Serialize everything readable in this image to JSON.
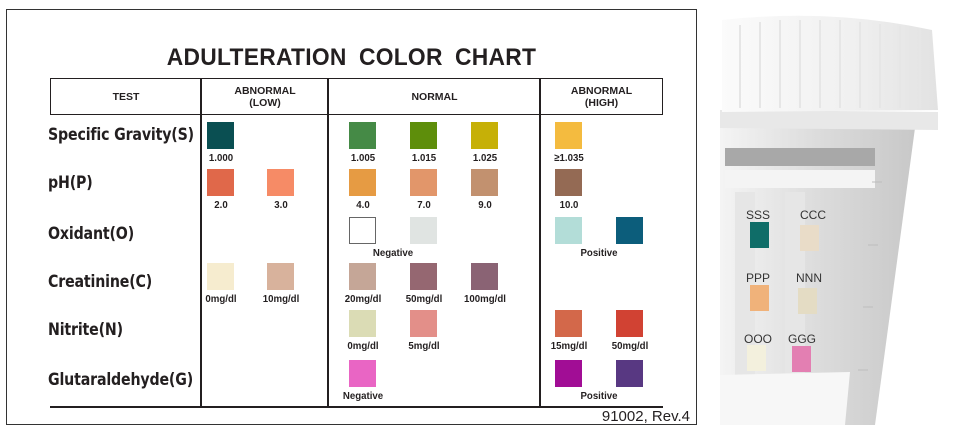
{
  "chart": {
    "title": "ADULTERATION  COLOR  CHART",
    "headers": {
      "test": "TEST",
      "low": "ABNORMAL\n(LOW)",
      "normal": "NORMAL",
      "high": "ABNORMAL\n(HIGH)"
    },
    "tests": [
      {
        "name": "Specific Gravity(S)",
        "low": {
          "swatches": [
            {
              "color": "#0a4f52",
              "label": "1.000"
            }
          ]
        },
        "normal": {
          "swatches": [
            {
              "color": "#458a46",
              "label": "1.005"
            },
            {
              "color": "#5e8e0b",
              "label": "1.015"
            },
            {
              "color": "#c6b007",
              "label": "1.025"
            }
          ]
        },
        "high": {
          "swatches": [
            {
              "color": "#f4bb3f",
              "label": "≥1.035"
            }
          ]
        }
      },
      {
        "name": "pH(P)",
        "low": {
          "swatches": [
            {
              "color": "#e0684a",
              "label": "2.0"
            },
            {
              "color": "#f68b66",
              "label": "3.0"
            }
          ]
        },
        "normal": {
          "swatches": [
            {
              "color": "#e69b43",
              "label": "4.0"
            },
            {
              "color": "#e2966a",
              "label": "7.0"
            },
            {
              "color": "#c2916f",
              "label": "9.0"
            }
          ]
        },
        "high": {
          "swatches": [
            {
              "color": "#946a54",
              "label": "10.0"
            }
          ]
        }
      },
      {
        "name": "Oxidant(O)",
        "low": {
          "swatches": []
        },
        "normal": {
          "swatches": [
            {
              "color": "#ffffff",
              "label": ""
            },
            {
              "color": "#e0e4e2",
              "label": ""
            }
          ],
          "shared_label": "Negative"
        },
        "high": {
          "swatches": [
            {
              "color": "#b3ddd8",
              "label": ""
            },
            {
              "color": "#0c5d7b",
              "label": ""
            }
          ],
          "shared_label": "Positive"
        }
      },
      {
        "name": "Creatinine(C)",
        "low": {
          "swatches": [
            {
              "color": "#f6eccf",
              "label": "0mg/dl"
            },
            {
              "color": "#d8b29c",
              "label": "10mg/dl"
            }
          ]
        },
        "normal": {
          "swatches": [
            {
              "color": "#c5a697",
              "label": "20mg/dl"
            },
            {
              "color": "#956771",
              "label": "50mg/dl"
            },
            {
              "color": "#8a6374",
              "label": "100mg/dl"
            }
          ]
        },
        "high": {
          "swatches": []
        }
      },
      {
        "name": "Nitrite(N)",
        "low": {
          "swatches": []
        },
        "normal": {
          "swatches": [
            {
              "color": "#dbdcb5",
              "label": "0mg/dl"
            },
            {
              "color": "#e38f89",
              "label": "5mg/dl"
            }
          ]
        },
        "high": {
          "swatches": [
            {
              "color": "#d3684a",
              "label": "15mg/dl"
            },
            {
              "color": "#d14233",
              "label": "50mg/dl"
            }
          ]
        }
      },
      {
        "name": "Glutaraldehyde(G)",
        "low": {
          "swatches": []
        },
        "normal": {
          "swatches": [
            {
              "color": "#e965c4",
              "label": ""
            }
          ],
          "shared_label": "Negative"
        },
        "high": {
          "swatches": [
            {
              "color": "#a10d95",
              "label": ""
            },
            {
              "color": "#583882",
              "label": ""
            }
          ],
          "shared_label": "Positive"
        }
      }
    ],
    "footer": "91002, Rev.4"
  },
  "photo": {
    "strip_labels": [
      "SSS",
      "CCC",
      "PPP",
      "NNN",
      "OOO",
      "GGG"
    ],
    "pad_colors": [
      "#0f6d68",
      "#e9dcc8",
      "#f0b27a",
      "#e4dcc4",
      "#f3f0dd",
      "#e37fb2"
    ]
  }
}
